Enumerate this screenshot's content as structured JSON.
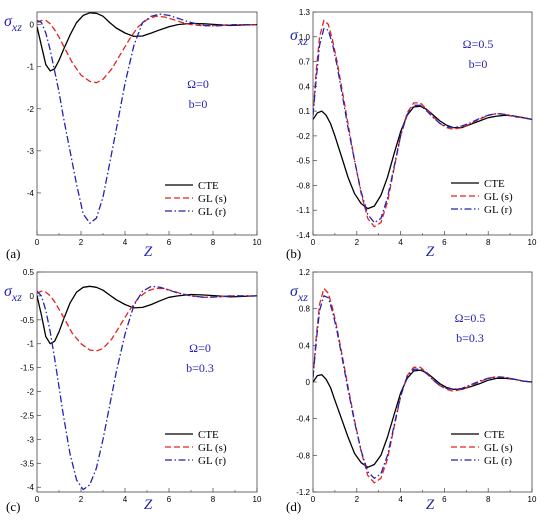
{
  "chart_data": [
    {
      "panel": "(a)",
      "type": "line",
      "ylabel": "σxz",
      "xlabel": "Z",
      "xlim": [
        0,
        10
      ],
      "ylim": [
        -5,
        0.3
      ],
      "xticks": [
        "0",
        "2",
        "4",
        "6",
        "8",
        "10"
      ],
      "yticks": [
        {
          "v": 0,
          "label": "0"
        },
        {
          "v": -1,
          "label": "-1"
        },
        {
          "v": -2,
          "label": "-2"
        },
        {
          "v": -3,
          "label": "-3"
        },
        {
          "v": -4,
          "label": "-4"
        }
      ],
      "params": [
        "Ω=0",
        "b=0"
      ],
      "series": [
        {
          "name": "CTE",
          "color": "#000000",
          "dash": "solid",
          "x": [
            0,
            0.2,
            0.4,
            0.6,
            0.8,
            1.0,
            1.2,
            1.5,
            1.8,
            2.1,
            2.4,
            2.7,
            3.0,
            3.3,
            3.6,
            4.0,
            4.4,
            4.8,
            5.2,
            5.6,
            6.0,
            6.4,
            7.0,
            7.6,
            8.2,
            8.8,
            9.4,
            10
          ],
          "y": [
            -0.05,
            -0.5,
            -0.95,
            -1.1,
            -1.05,
            -0.85,
            -0.6,
            -0.25,
            0.05,
            0.22,
            0.28,
            0.27,
            0.2,
            0.05,
            -0.08,
            -0.2,
            -0.28,
            -0.27,
            -0.2,
            -0.12,
            -0.05,
            0,
            0.03,
            0.02,
            0,
            -0.02,
            -0.01,
            0
          ]
        },
        {
          "name": "GL (s)",
          "color": "#e8221c",
          "dash": "dash",
          "x": [
            0,
            0.2,
            0.4,
            0.6,
            0.8,
            1.0,
            1.3,
            1.6,
            2.0,
            2.4,
            2.7,
            3.0,
            3.4,
            3.8,
            4.2,
            4.6,
            5.0,
            5.4,
            5.8,
            6.2,
            6.6,
            7.0,
            7.6,
            8.2,
            8.8,
            9.4,
            10
          ],
          "y": [
            0.05,
            0.1,
            0.1,
            0.02,
            -0.12,
            -0.3,
            -0.6,
            -0.9,
            -1.2,
            -1.35,
            -1.38,
            -1.3,
            -1.05,
            -0.7,
            -0.35,
            -0.05,
            0.12,
            0.2,
            0.18,
            0.12,
            0.05,
            0,
            -0.03,
            -0.02,
            0,
            0,
            0
          ]
        },
        {
          "name": "GL (r)",
          "color": "#2323b4",
          "dash": "dashdot",
          "x": [
            0,
            0.2,
            0.4,
            0.6,
            0.8,
            1.0,
            1.2,
            1.5,
            1.8,
            2.1,
            2.4,
            2.7,
            3.0,
            3.3,
            3.6,
            4.0,
            4.4,
            4.8,
            5.2,
            5.6,
            6.0,
            6.4,
            7.0,
            7.6,
            8.2,
            8.8,
            9.4,
            10
          ],
          "y": [
            0.1,
            0.05,
            -0.2,
            -0.6,
            -1.1,
            -1.6,
            -2.2,
            -3.0,
            -3.8,
            -4.5,
            -4.72,
            -4.6,
            -4.1,
            -3.3,
            -2.5,
            -1.4,
            -0.5,
            0.05,
            0.2,
            0.25,
            0.22,
            0.15,
            0.05,
            -0.02,
            -0.03,
            -0.01,
            0,
            0
          ]
        }
      ]
    },
    {
      "panel": "(b)",
      "type": "line",
      "ylabel": "σxz",
      "xlabel": "Z",
      "xlim": [
        0,
        10
      ],
      "ylim": [
        -1.4,
        1.3
      ],
      "xticks": [
        "0",
        "2",
        "4",
        "6",
        "8",
        "10"
      ],
      "yticks": [
        {
          "v": 1.3,
          "label": "1.3"
        },
        {
          "v": 1.0,
          "label": "1.0"
        },
        {
          "v": 0.7,
          "label": "0.7"
        },
        {
          "v": 0.4,
          "label": "0.4"
        },
        {
          "v": 0.1,
          "label": "0.1"
        },
        {
          "v": -0.2,
          "label": "-0.2"
        },
        {
          "v": -0.5,
          "label": "-0.5"
        },
        {
          "v": -0.8,
          "label": "-0.8"
        },
        {
          "v": -1.1,
          "label": "-1.1"
        },
        {
          "v": -1.4,
          "label": "-1.4"
        }
      ],
      "params": [
        "Ω=0.5",
        "b=0"
      ],
      "series": [
        {
          "name": "CTE",
          "color": "#000000",
          "dash": "solid",
          "x": [
            0,
            0.2,
            0.4,
            0.6,
            0.8,
            1.0,
            1.3,
            1.6,
            1.9,
            2.2,
            2.5,
            2.8,
            3.1,
            3.4,
            3.7,
            4.0,
            4.3,
            4.6,
            4.9,
            5.2,
            5.5,
            5.8,
            6.1,
            6.4,
            6.8,
            7.2,
            7.6,
            8.0,
            8.4,
            8.8,
            9.2,
            9.6,
            10
          ],
          "y": [
            0,
            0.08,
            0.1,
            0.05,
            -0.05,
            -0.2,
            -0.45,
            -0.7,
            -0.9,
            -1.02,
            -1.08,
            -1.05,
            -0.92,
            -0.7,
            -0.42,
            -0.15,
            0.05,
            0.15,
            0.16,
            0.12,
            0.05,
            -0.02,
            -0.07,
            -0.1,
            -0.1,
            -0.06,
            -0.02,
            0.02,
            0.04,
            0.05,
            0.04,
            0.02,
            0
          ]
        },
        {
          "name": "GL (s)",
          "color": "#e8221c",
          "dash": "dash",
          "x": [
            0,
            0.15,
            0.3,
            0.5,
            0.7,
            0.9,
            1.1,
            1.3,
            1.6,
            1.9,
            2.2,
            2.5,
            2.8,
            3.1,
            3.4,
            3.7,
            4.0,
            4.3,
            4.6,
            4.9,
            5.2,
            5.5,
            5.8,
            6.1,
            6.4,
            6.8,
            7.2,
            7.6,
            8.0,
            8.4,
            8.8,
            9.2,
            9.6,
            10
          ],
          "y": [
            0.05,
            0.6,
            1.0,
            1.2,
            1.15,
            0.95,
            0.7,
            0.4,
            -0.05,
            -0.5,
            -0.9,
            -1.2,
            -1.3,
            -1.25,
            -1.0,
            -0.6,
            -0.2,
            0.08,
            0.2,
            0.2,
            0.12,
            0.03,
            -0.05,
            -0.1,
            -0.12,
            -0.1,
            -0.05,
            0,
            0.05,
            0.07,
            0.06,
            0.03,
            0.02,
            0
          ]
        },
        {
          "name": "GL (r)",
          "color": "#2323b4",
          "dash": "dashdot",
          "x": [
            0,
            0.15,
            0.3,
            0.5,
            0.7,
            0.9,
            1.1,
            1.3,
            1.6,
            1.9,
            2.2,
            2.5,
            2.8,
            3.1,
            3.4,
            3.7,
            4.0,
            4.3,
            4.6,
            4.9,
            5.2,
            5.5,
            5.8,
            6.1,
            6.4,
            6.8,
            7.2,
            7.6,
            8.0,
            8.4,
            8.8,
            9.2,
            9.6,
            10
          ],
          "y": [
            0.05,
            0.5,
            0.9,
            1.1,
            1.08,
            0.9,
            0.65,
            0.35,
            -0.1,
            -0.5,
            -0.88,
            -1.15,
            -1.25,
            -1.2,
            -0.95,
            -0.58,
            -0.2,
            0.06,
            0.17,
            0.17,
            0.1,
            0.02,
            -0.05,
            -0.09,
            -0.1,
            -0.08,
            -0.04,
            0.01,
            0.05,
            0.07,
            0.06,
            0.04,
            0.02,
            0
          ]
        }
      ]
    },
    {
      "panel": "(c)",
      "type": "line",
      "ylabel": "σxz",
      "xlabel": "Z",
      "xlim": [
        0,
        10
      ],
      "ylim": [
        -4.1,
        0.5
      ],
      "xticks": [
        "0",
        "2",
        "4",
        "6",
        "8",
        "10"
      ],
      "yticks": [
        {
          "v": 0.5,
          "label": "0.5"
        },
        {
          "v": 0,
          "label": "0"
        },
        {
          "v": -0.5,
          "label": "-0.5"
        },
        {
          "v": -1,
          "label": "-1"
        },
        {
          "v": -1.5,
          "label": "-1.5"
        },
        {
          "v": -2,
          "label": "-2"
        },
        {
          "v": -2.5,
          "label": "-2.5"
        },
        {
          "v": -3,
          "label": "-3"
        },
        {
          "v": -3.5,
          "label": "-3.5"
        },
        {
          "v": -4,
          "label": "-4"
        }
      ],
      "params": [
        "Ω=0",
        "b=0.3"
      ],
      "series": [
        {
          "name": "CTE",
          "color": "#000000",
          "dash": "solid",
          "x": [
            0,
            0.2,
            0.4,
            0.6,
            0.8,
            1.0,
            1.2,
            1.5,
            1.8,
            2.1,
            2.4,
            2.7,
            3.0,
            3.3,
            3.6,
            4.0,
            4.4,
            4.8,
            5.2,
            5.6,
            6.0,
            6.4,
            7.0,
            7.6,
            8.2,
            8.8,
            9.4,
            10
          ],
          "y": [
            0,
            -0.4,
            -0.85,
            -1.0,
            -0.95,
            -0.75,
            -0.5,
            -0.15,
            0.08,
            0.18,
            0.2,
            0.18,
            0.12,
            0.02,
            -0.08,
            -0.18,
            -0.25,
            -0.24,
            -0.18,
            -0.1,
            -0.03,
            0,
            0.03,
            0.02,
            0,
            -0.02,
            -0.01,
            0
          ]
        },
        {
          "name": "GL (s)",
          "color": "#e8221c",
          "dash": "dash",
          "x": [
            0,
            0.2,
            0.4,
            0.6,
            0.8,
            1.0,
            1.3,
            1.6,
            2.0,
            2.4,
            2.7,
            3.0,
            3.4,
            3.8,
            4.2,
            4.6,
            5.0,
            5.4,
            5.8,
            6.2,
            6.6,
            7.0,
            7.6,
            8.2,
            8.8,
            9.4,
            10
          ],
          "y": [
            0.05,
            0.1,
            0.08,
            0,
            -0.12,
            -0.28,
            -0.52,
            -0.78,
            -1.0,
            -1.13,
            -1.15,
            -1.1,
            -0.9,
            -0.6,
            -0.3,
            -0.05,
            0.1,
            0.16,
            0.15,
            0.1,
            0.04,
            0,
            -0.03,
            -0.02,
            0,
            0,
            0
          ]
        },
        {
          "name": "GL (r)",
          "color": "#2323b4",
          "dash": "dashdot",
          "x": [
            0,
            0.2,
            0.4,
            0.6,
            0.8,
            1.0,
            1.2,
            1.5,
            1.8,
            2.1,
            2.4,
            2.7,
            3.0,
            3.3,
            3.6,
            4.0,
            4.4,
            4.8,
            5.2,
            5.6,
            6.0,
            6.4,
            7.0,
            7.6,
            8.2,
            8.8,
            9.4,
            10
          ],
          "y": [
            0.1,
            0,
            -0.3,
            -0.75,
            -1.3,
            -1.9,
            -2.5,
            -3.3,
            -3.85,
            -4.05,
            -3.95,
            -3.6,
            -3.0,
            -2.3,
            -1.6,
            -0.8,
            -0.2,
            0.1,
            0.2,
            0.18,
            0.12,
            0.06,
            0,
            -0.03,
            -0.02,
            0,
            0,
            0
          ]
        }
      ]
    },
    {
      "panel": "(d)",
      "type": "line",
      "ylabel": "σxz",
      "xlabel": "Z",
      "xlim": [
        0,
        10
      ],
      "ylim": [
        -1.2,
        1.2
      ],
      "xticks": [
        "0",
        "2",
        "4",
        "6",
        "8",
        "10"
      ],
      "yticks": [
        {
          "v": 1.2,
          "label": "1.2"
        },
        {
          "v": 0.8,
          "label": "0.8"
        },
        {
          "v": 0.4,
          "label": "0.4"
        },
        {
          "v": 0,
          "label": "0"
        },
        {
          "v": -0.4,
          "label": "-0.4"
        },
        {
          "v": -0.8,
          "label": "-0.8"
        },
        {
          "v": -1.2,
          "label": "-1.2"
        }
      ],
      "params": [
        "Ω=0.5",
        "b=0.3"
      ],
      "series": [
        {
          "name": "CTE",
          "color": "#000000",
          "dash": "solid",
          "x": [
            0,
            0.2,
            0.4,
            0.6,
            0.8,
            1.0,
            1.3,
            1.6,
            1.9,
            2.2,
            2.5,
            2.8,
            3.1,
            3.4,
            3.7,
            4.0,
            4.3,
            4.6,
            4.9,
            5.2,
            5.5,
            5.8,
            6.1,
            6.4,
            6.8,
            7.2,
            7.6,
            8.0,
            8.4,
            8.8,
            9.2,
            9.6,
            10
          ],
          "y": [
            0,
            0.07,
            0.08,
            0.03,
            -0.06,
            -0.2,
            -0.4,
            -0.6,
            -0.78,
            -0.88,
            -0.93,
            -0.9,
            -0.8,
            -0.6,
            -0.36,
            -0.12,
            0.04,
            0.12,
            0.13,
            0.1,
            0.04,
            -0.02,
            -0.06,
            -0.08,
            -0.08,
            -0.05,
            -0.02,
            0.02,
            0.04,
            0.04,
            0.03,
            0.01,
            0
          ]
        },
        {
          "name": "GL (s)",
          "color": "#e8221c",
          "dash": "dash",
          "x": [
            0,
            0.15,
            0.3,
            0.5,
            0.7,
            0.9,
            1.1,
            1.3,
            1.6,
            1.9,
            2.2,
            2.5,
            2.8,
            3.1,
            3.4,
            3.7,
            4.0,
            4.3,
            4.6,
            4.9,
            5.2,
            5.5,
            5.8,
            6.1,
            6.4,
            6.8,
            7.2,
            7.6,
            8.0,
            8.4,
            8.8,
            9.2,
            9.6,
            10
          ],
          "y": [
            0.05,
            0.5,
            0.85,
            1.02,
            0.97,
            0.8,
            0.58,
            0.33,
            -0.05,
            -0.42,
            -0.76,
            -1.02,
            -1.1,
            -1.05,
            -0.84,
            -0.5,
            -0.16,
            0.07,
            0.16,
            0.16,
            0.1,
            0.02,
            -0.04,
            -0.08,
            -0.1,
            -0.08,
            -0.04,
            0,
            0.04,
            0.06,
            0.05,
            0.03,
            0.01,
            0
          ]
        },
        {
          "name": "GL (r)",
          "color": "#2323b4",
          "dash": "dashdot",
          "x": [
            0,
            0.15,
            0.3,
            0.5,
            0.7,
            0.9,
            1.1,
            1.3,
            1.6,
            1.9,
            2.2,
            2.5,
            2.8,
            3.1,
            3.4,
            3.7,
            4.0,
            4.3,
            4.6,
            4.9,
            5.2,
            5.5,
            5.8,
            6.1,
            6.4,
            6.8,
            7.2,
            7.6,
            8.0,
            8.4,
            8.8,
            9.2,
            9.6,
            10
          ],
          "y": [
            0.05,
            0.45,
            0.78,
            0.94,
            0.92,
            0.76,
            0.55,
            0.3,
            -0.08,
            -0.44,
            -0.75,
            -0.98,
            -1.05,
            -1.0,
            -0.8,
            -0.48,
            -0.15,
            0.06,
            0.14,
            0.14,
            0.09,
            0.02,
            -0.04,
            -0.07,
            -0.08,
            -0.07,
            -0.03,
            0.01,
            0.04,
            0.05,
            0.05,
            0.03,
            0.01,
            0
          ]
        }
      ]
    }
  ]
}
